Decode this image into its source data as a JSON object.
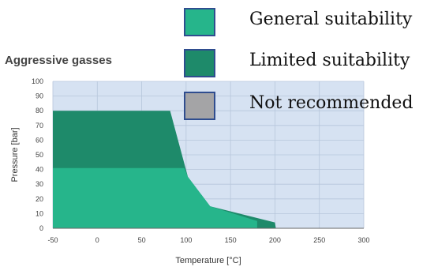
{
  "chart_data": {
    "type": "area",
    "title": "Aggressive gasses",
    "xlabel": "Temperature [°C]",
    "ylabel": "Pressure [bar]",
    "xlim": [
      -50,
      300
    ],
    "ylim": [
      0,
      100
    ],
    "xticks": [
      -50,
      0,
      50,
      100,
      150,
      200,
      250,
      300
    ],
    "yticks": [
      0,
      10,
      20,
      30,
      40,
      50,
      60,
      70,
      80,
      90,
      100
    ],
    "grid": true,
    "legend_position": "top-right",
    "background_color": "#d6e2f2",
    "series": [
      {
        "name": "Limited suitability",
        "color": "#1e8a6a",
        "points": [
          [
            -50,
            0
          ],
          [
            -50,
            80
          ],
          [
            82,
            80
          ],
          [
            102,
            35
          ],
          [
            127,
            15
          ],
          [
            200,
            4
          ],
          [
            201,
            0
          ]
        ]
      },
      {
        "name": "General suitability",
        "color": "#26b58b",
        "points": [
          [
            -50,
            0
          ],
          [
            -50,
            41
          ],
          [
            98,
            41
          ],
          [
            102,
            35
          ],
          [
            127,
            15
          ],
          [
            180,
            5
          ],
          [
            180,
            0
          ]
        ]
      }
    ]
  },
  "legend": [
    {
      "label": "General suitability",
      "color": "#26b58b"
    },
    {
      "label": "Limited suitability",
      "color": "#1e8a6a"
    },
    {
      "label": "Not recommended",
      "color": "#a4a4a6"
    }
  ]
}
